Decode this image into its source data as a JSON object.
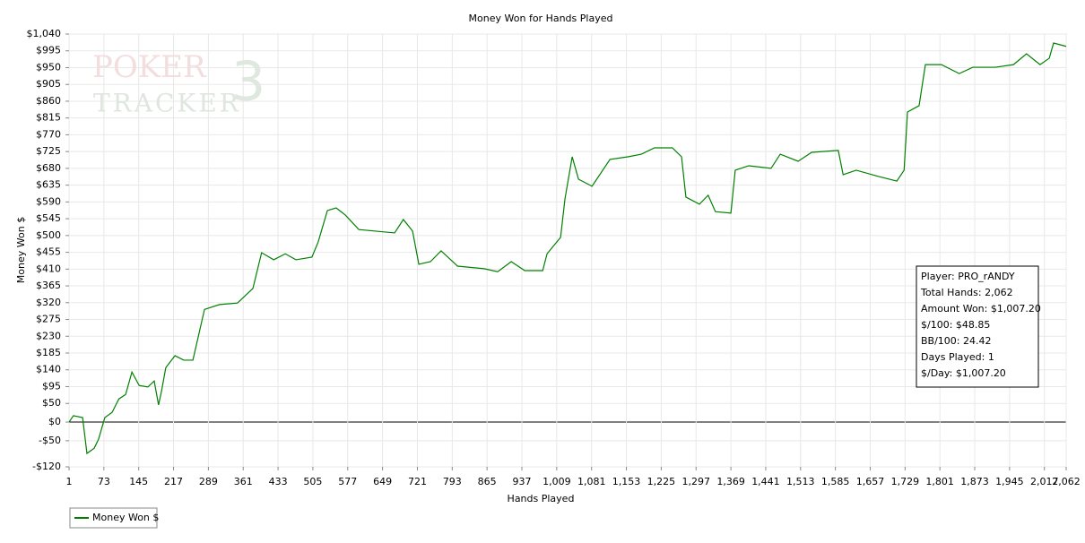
{
  "chart_data": {
    "type": "line",
    "title": "Money Won for Hands Played",
    "x_label": "Hands Played",
    "y_label": "Money Won $",
    "logo": [
      "POKER",
      "TRACKER",
      "3"
    ],
    "annotations": [
      "Player: PRO_rANDY",
      "Total Hands: 2,062",
      "Amount Won: $1,007.20",
      "$/100: $48.85",
      "BB/100: 24.42",
      "Days Played: 1",
      "$/Day: $1,007.20"
    ],
    "x": [
      1,
      10,
      29,
      38,
      53,
      62,
      75,
      90,
      104,
      118,
      131,
      146,
      164,
      177,
      186,
      192,
      201,
      220,
      238,
      257,
      281,
      312,
      349,
      381,
      399,
      424,
      448,
      470,
      503,
      516,
      535,
      553,
      572,
      600,
      674,
      692,
      711,
      724,
      748,
      770,
      804,
      859,
      887,
      915,
      943,
      980,
      989,
      1017,
      1026,
      1041,
      1054,
      1082,
      1119,
      1156,
      1184,
      1211,
      1248,
      1267,
      1276,
      1304,
      1322,
      1337,
      1369,
      1378,
      1406,
      1452,
      1471,
      1508,
      1536,
      1591,
      1601,
      1628,
      1675,
      1712,
      1727,
      1734,
      1758,
      1771,
      1804,
      1841,
      1869,
      1916,
      1953,
      1980,
      2008,
      2027,
      2036,
      2062
    ],
    "series": [
      {
        "name": "Money Won $",
        "color": "#008000",
        "values": [
          0,
          17,
          12,
          -84,
          -70,
          -46,
          12,
          26,
          62,
          74,
          134,
          98,
          94,
          110,
          46,
          82,
          146,
          178,
          166,
          166,
          302,
          315,
          319,
          358,
          454,
          435,
          451,
          435,
          442,
          483,
          567,
          574,
          555,
          516,
          507,
          543,
          512,
          423,
          430,
          459,
          418,
          411,
          403,
          430,
          406,
          406,
          451,
          495,
          598,
          711,
          651,
          632,
          704,
          711,
          718,
          735,
          735,
          711,
          603,
          584,
          608,
          564,
          560,
          675,
          687,
          680,
          718,
          699,
          723,
          728,
          663,
          675,
          658,
          646,
          675,
          831,
          848,
          958,
          958,
          934,
          951,
          951,
          958,
          987,
          958,
          975,
          1016,
          1007
        ]
      }
    ],
    "xlim": [
      1,
      2062
    ],
    "ylim": [
      -120,
      1040
    ],
    "xticks": [
      1,
      73,
      145,
      217,
      289,
      361,
      433,
      505,
      577,
      649,
      721,
      793,
      865,
      937,
      {
        "value": 1009,
        "label": "1,009"
      },
      {
        "value": 1081,
        "label": "1,081"
      },
      {
        "value": 1153,
        "label": "1,153"
      },
      {
        "value": 1225,
        "label": "1,225"
      },
      {
        "value": 1297,
        "label": "1,297"
      },
      {
        "value": 1369,
        "label": "1,369"
      },
      {
        "value": 1441,
        "label": "1,441"
      },
      {
        "value": 1513,
        "label": "1,513"
      },
      {
        "value": 1585,
        "label": "1,585"
      },
      {
        "value": 1657,
        "label": "1,657"
      },
      {
        "value": 1729,
        "label": "1,729"
      },
      {
        "value": 1801,
        "label": "1,801"
      },
      {
        "value": 1873,
        "label": "1,873"
      },
      {
        "value": 1945,
        "label": "1,945"
      },
      {
        "value": 2017,
        "label": "2,017"
      },
      {
        "value": 2062,
        "label": "2,062"
      }
    ],
    "yticks": [
      {
        "value": -120,
        "label": "-$120"
      },
      {
        "value": -50,
        "label": "-$50"
      },
      {
        "value": 0,
        "label": "$0"
      },
      {
        "value": 50,
        "label": "$50"
      },
      {
        "value": 95,
        "label": "$95"
      },
      {
        "value": 140,
        "label": "$140"
      },
      {
        "value": 185,
        "label": "$185"
      },
      {
        "value": 230,
        "label": "$230"
      },
      {
        "value": 275,
        "label": "$275"
      },
      {
        "value": 320,
        "label": "$320"
      },
      {
        "value": 365,
        "label": "$365"
      },
      {
        "value": 410,
        "label": "$410"
      },
      {
        "value": 455,
        "label": "$455"
      },
      {
        "value": 500,
        "label": "$500"
      },
      {
        "value": 545,
        "label": "$545"
      },
      {
        "value": 590,
        "label": "$590"
      },
      {
        "value": 635,
        "label": "$635"
      },
      {
        "value": 680,
        "label": "$680"
      },
      {
        "value": 725,
        "label": "$725"
      },
      {
        "value": 770,
        "label": "$770"
      },
      {
        "value": 815,
        "label": "$815"
      },
      {
        "value": 860,
        "label": "$860"
      },
      {
        "value": 905,
        "label": "$905"
      },
      {
        "value": 950,
        "label": "$950"
      },
      {
        "value": 995,
        "label": "$995"
      },
      {
        "value": 1040,
        "label": "$1,040"
      }
    ],
    "grid": true
  }
}
